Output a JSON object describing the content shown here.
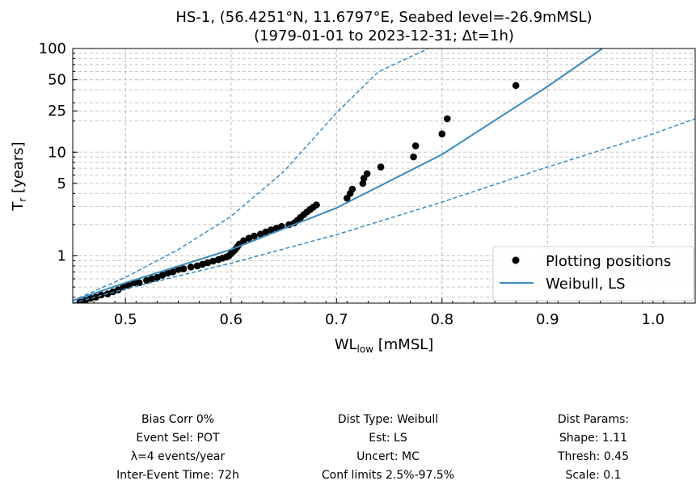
{
  "chart_data": {
    "type": "scatter",
    "title": "HS-1, (56.4251°N, 11.6797°E, Seabed level=-26.9mMSL)",
    "subtitle": "(1979-01-01 to 2023-12-31; Δt=1h)",
    "xlabel": "WL",
    "xlabel_sub": "low",
    "xlabel_unit": " [mMSL]",
    "ylabel": "T",
    "ylabel_sub": "r",
    "ylabel_unit": " [years]",
    "xlim": [
      0.45,
      1.04
    ],
    "ylim": [
      0.35,
      100
    ],
    "yscale": "log",
    "grid": true,
    "legend_position": "lower-right",
    "xticks": [
      0.5,
      0.6,
      0.7,
      0.8,
      0.9,
      1.0
    ],
    "xtick_labels": [
      "0.5",
      "0.6",
      "0.7",
      "0.8",
      "0.9",
      "1.0"
    ],
    "yticks": [
      1,
      5,
      10,
      25,
      50,
      100
    ],
    "ytick_labels": [
      "1",
      "5",
      "10",
      "25",
      "50",
      "100"
    ],
    "series": [
      {
        "name": "Plotting positions",
        "kind": "points",
        "color": "#000000",
        "x": [
          0.457,
          0.462,
          0.467,
          0.472,
          0.477,
          0.483,
          0.488,
          0.493,
          0.498,
          0.503,
          0.508,
          0.513,
          0.52,
          0.525,
          0.53,
          0.535,
          0.54,
          0.545,
          0.55,
          0.555,
          0.562,
          0.568,
          0.573,
          0.578,
          0.583,
          0.588,
          0.592,
          0.596,
          0.598,
          0.6,
          0.602,
          0.604,
          0.606,
          0.608,
          0.612,
          0.617,
          0.622,
          0.628,
          0.633,
          0.638,
          0.643,
          0.648,
          0.655,
          0.66,
          0.663,
          0.666,
          0.669,
          0.672,
          0.675,
          0.678,
          0.681,
          0.71,
          0.713,
          0.715,
          0.725,
          0.726,
          0.729,
          0.742,
          0.773,
          0.775,
          0.8,
          0.805,
          0.87
        ],
        "y": [
          0.36,
          0.37,
          0.39,
          0.4,
          0.42,
          0.43,
          0.45,
          0.47,
          0.5,
          0.52,
          0.55,
          0.55,
          0.58,
          0.6,
          0.62,
          0.65,
          0.68,
          0.7,
          0.74,
          0.75,
          0.78,
          0.8,
          0.83,
          0.86,
          0.89,
          0.92,
          0.95,
          0.98,
          1.0,
          1.05,
          1.1,
          1.15,
          1.22,
          1.3,
          1.4,
          1.48,
          1.55,
          1.62,
          1.7,
          1.78,
          1.85,
          1.92,
          2.0,
          2.08,
          2.2,
          2.35,
          2.5,
          2.65,
          2.8,
          2.95,
          3.1,
          3.6,
          4.0,
          4.4,
          5.0,
          5.6,
          6.2,
          7.2,
          9.0,
          11.5,
          15.0,
          21.0,
          44.0
        ]
      },
      {
        "name": "Weibull, LS",
        "kind": "line",
        "color": "#3a8bbf",
        "x": [
          0.45,
          0.5,
          0.6,
          0.7,
          0.8,
          0.9,
          0.952
        ],
        "y": [
          0.37,
          0.55,
          1.15,
          2.9,
          9.5,
          43.0,
          100.0
        ]
      },
      {
        "name": "",
        "kind": "dashed",
        "color": "#3a8bbf",
        "x": [
          0.45,
          0.5,
          0.55,
          0.6,
          0.65,
          0.7,
          0.74,
          0.787
        ],
        "y": [
          0.37,
          0.62,
          1.15,
          2.4,
          6.5,
          24.0,
          60.0,
          100.0
        ]
      },
      {
        "name": "",
        "kind": "dashed",
        "color": "#3a8bbf",
        "x": [
          0.45,
          0.5,
          0.6,
          0.7,
          0.8,
          0.9,
          1.0,
          1.04
        ],
        "y": [
          0.35,
          0.48,
          0.85,
          1.6,
          3.3,
          7.2,
          15.0,
          21.0
        ]
      }
    ]
  },
  "info": {
    "left": [
      "Bias Corr 0%",
      "Event Sel: POT",
      "λ=4 events/year",
      "Inter-Event Time: 72h"
    ],
    "center": [
      "Dist Type: Weibull",
      "Est: LS",
      "Uncert: MC",
      "Conf limits 2.5%-97.5%"
    ],
    "right": [
      "Dist Params:",
      "Shape: 1.11",
      "Thresh: 0.45",
      "Scale: 0.1"
    ]
  }
}
